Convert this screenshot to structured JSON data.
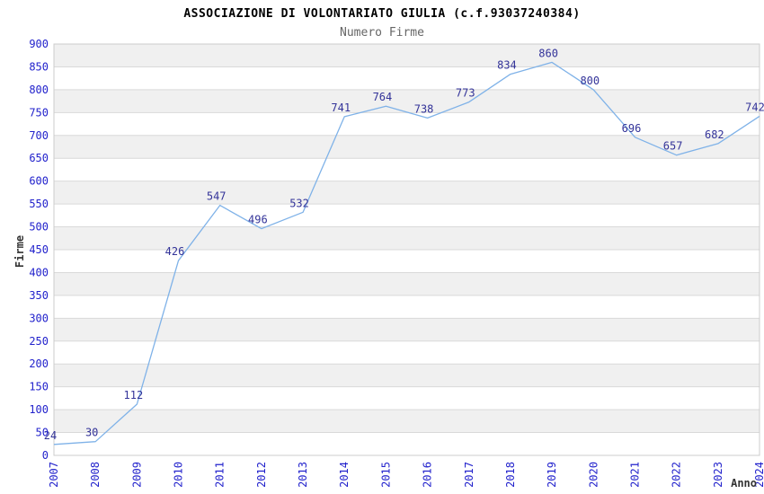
{
  "header": {
    "title": "ASSOCIAZIONE DI VOLONTARIATO GIULIA (c.f.93037240384)",
    "subtitle": "Numero Firme"
  },
  "chart_data": {
    "type": "line",
    "title": "ASSOCIAZIONE DI VOLONTARIATO GIULIA (c.f.93037240384)",
    "subtitle": "Numero Firme",
    "xlabel": "Anno",
    "ylabel": "Firme",
    "categories": [
      "2007",
      "2008",
      "2009",
      "2010",
      "2011",
      "2012",
      "2013",
      "2014",
      "2015",
      "2016",
      "2017",
      "2018",
      "2019",
      "2020",
      "2021",
      "2022",
      "2023",
      "2024"
    ],
    "series": [
      {
        "name": "Numero Firme",
        "values": [
          24,
          30,
          112,
          426,
          547,
          496,
          532,
          741,
          764,
          738,
          773,
          834,
          860,
          800,
          696,
          657,
          682,
          742
        ]
      }
    ],
    "ylim": [
      0,
      900
    ],
    "ytick_step": 50,
    "grid": true,
    "grid_style": "alternating-horizontal-bands",
    "legend": "none",
    "point_labels_visible": true,
    "colors": {
      "line": "#7fb2e8",
      "tick_label": "#2222cc",
      "data_label": "#333399",
      "band": "#f0f0f0",
      "grid_line": "#d9d9d9",
      "plot_border": "#cccccc",
      "axis_title": "#333333",
      "title": "#000000",
      "subtitle": "#666666",
      "background": "#ffffff"
    }
  }
}
